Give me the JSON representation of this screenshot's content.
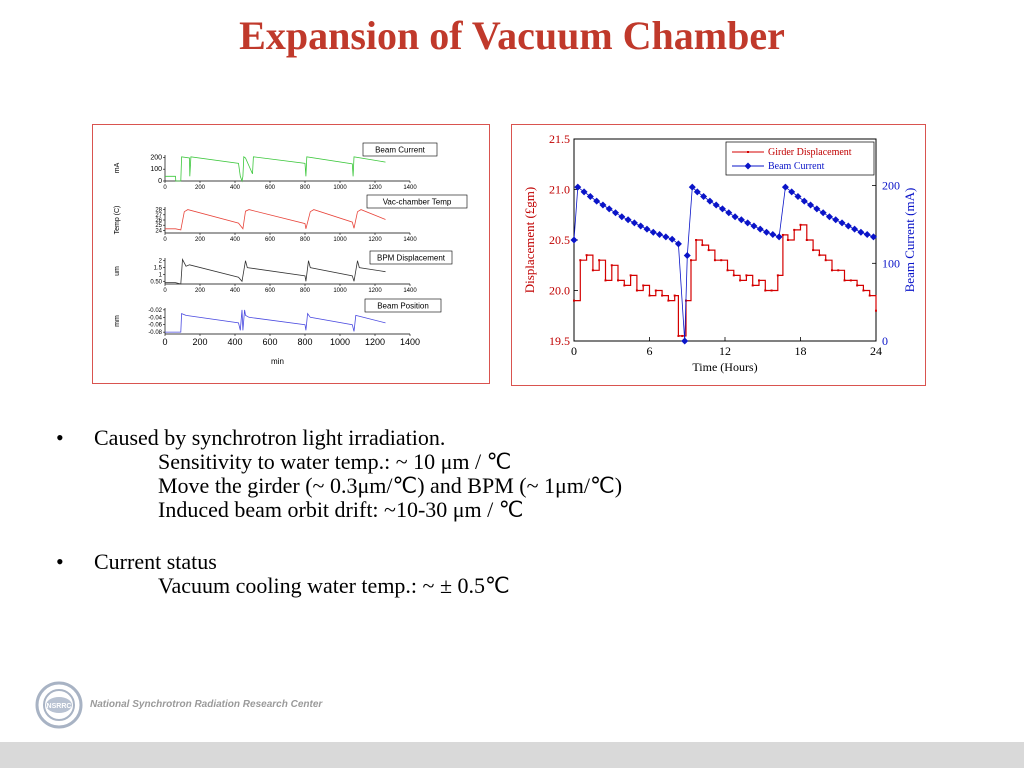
{
  "title": "Expansion of Vacuum Chamber",
  "bullets": [
    {
      "text": "Caused by synchrotron light irradiation.",
      "sub": [
        "Sensitivity to water temp.: ~ 10 μm / ℃",
        "Move the girder (~ 0.3μm/℃) and BPM (~ 1μm/℃)",
        "Induced beam orbit drift: ~10-30 μm / ℃"
      ]
    },
    {
      "text": "Current status",
      "sub": [
        "Vacuum cooling water temp.: ~ ± 0.5℃"
      ]
    }
  ],
  "bullet_symbol": "•",
  "footer": {
    "org": "National Synchrotron Radiation Research Center",
    "logo_text": "NSRRC"
  },
  "colors": {
    "title": "#c0392b",
    "panel_border": "#d9534f",
    "beam_current": "#3cc73c",
    "vac_temp": "#e8443a",
    "bpm_disp": "#333333",
    "beam_position": "#4a4ae0",
    "girder": "#d40000",
    "beam_current_right": "#0a14c8"
  },
  "chart_data": [
    {
      "type": "line",
      "title": "Beam Current",
      "ylabel": "mA",
      "xlim": [
        0,
        1400
      ],
      "xticks": [
        0,
        200,
        400,
        600,
        800,
        1000,
        1200,
        1400
      ],
      "yticks": [
        0,
        100,
        200
      ],
      "ylim": [
        0,
        220
      ],
      "series": [
        {
          "name": "Beam Current",
          "color": "#3cc73c",
          "x": [
            0,
            60,
            62,
            90,
            95,
            140,
            142,
            148,
            420,
            430,
            440,
            445,
            450,
            460,
            500,
            505,
            800,
            805,
            810,
            1070,
            1075,
            1080,
            1260
          ],
          "y": [
            40,
            40,
            0,
            0,
            205,
            195,
            40,
            205,
            150,
            40,
            0,
            40,
            205,
            195,
            60,
            205,
            150,
            40,
            205,
            145,
            40,
            205,
            160
          ]
        }
      ]
    },
    {
      "type": "line",
      "title": "Vac-chamber Temp",
      "ylabel": "Temp (C)",
      "xlim": [
        0,
        1400
      ],
      "xticks": [
        0,
        200,
        400,
        600,
        800,
        1000,
        1200,
        1400
      ],
      "yticks": [
        24,
        25,
        26,
        27,
        28
      ],
      "ylim": [
        23.5,
        28.5
      ],
      "series": [
        {
          "name": "Vac-chamber Temp",
          "color": "#e8443a",
          "x": [
            0,
            60,
            90,
            110,
            130,
            420,
            445,
            460,
            480,
            800,
            805,
            830,
            850,
            1070,
            1080,
            1100,
            1120,
            1260
          ],
          "y": [
            24.3,
            24.3,
            24.1,
            27.6,
            28.0,
            25.4,
            24.3,
            27.7,
            28.0,
            25.3,
            24.3,
            27.6,
            28.0,
            25.6,
            24.4,
            27.6,
            28.0,
            26.1
          ]
        }
      ]
    },
    {
      "type": "line",
      "title": "BPM Displacement",
      "ylabel": "um",
      "xlim": [
        0,
        1400
      ],
      "xticks": [
        0,
        200,
        400,
        600,
        800,
        1000,
        1200,
        1400
      ],
      "yticks": [
        0.5,
        1.0,
        1.5,
        2.0
      ],
      "ylim": [
        0.3,
        2.2
      ],
      "series": [
        {
          "name": "BPM Displacement",
          "color": "#333333",
          "x": [
            0,
            60,
            90,
            100,
            120,
            140,
            420,
            440,
            460,
            470,
            800,
            805,
            820,
            830,
            1070,
            1080,
            1100,
            1110,
            1260
          ],
          "y": [
            0.4,
            0.4,
            0.3,
            2.1,
            1.6,
            1.7,
            0.8,
            0.5,
            2.0,
            1.5,
            0.9,
            0.5,
            2.0,
            1.5,
            0.9,
            0.5,
            2.0,
            1.5,
            1.2
          ]
        }
      ]
    },
    {
      "type": "line",
      "title": "Beam Position",
      "ylabel": "mm",
      "xlabel": "min",
      "xlim": [
        0,
        1400
      ],
      "xticks": [
        0,
        200,
        400,
        600,
        800,
        1000,
        1200,
        1400
      ],
      "yticks": [
        -0.08,
        -0.06,
        -0.04,
        -0.02
      ],
      "ylim": [
        -0.085,
        -0.015
      ],
      "series": [
        {
          "name": "Beam Position",
          "color": "#4a4ae0",
          "x": [
            0,
            60,
            80,
            90,
            95,
            120,
            420,
            430,
            440,
            445,
            455,
            460,
            480,
            800,
            805,
            815,
            830,
            1070,
            1080,
            1090,
            1260
          ],
          "y": [
            -0.08,
            -0.08,
            -0.08,
            -0.08,
            -0.03,
            -0.035,
            -0.055,
            -0.075,
            -0.02,
            -0.075,
            -0.02,
            -0.035,
            -0.04,
            -0.06,
            -0.075,
            -0.03,
            -0.04,
            -0.06,
            -0.078,
            -0.035,
            -0.055
          ]
        }
      ]
    },
    {
      "type": "line",
      "xlabel": "Time (Hours)",
      "ylabel": "Displacement (£gm)",
      "ylabel_right": "Beam Current (mA)",
      "xlim": [
        0,
        24
      ],
      "xticks": [
        0,
        6,
        12,
        18,
        24
      ],
      "ylim": [
        19.5,
        21.5
      ],
      "yticks": [
        19.5,
        20.0,
        20.5,
        21.0,
        21.5
      ],
      "ylim_right": [
        0,
        260
      ],
      "yticks_right": [
        0,
        100,
        200
      ],
      "legend": "top-right",
      "series": [
        {
          "name": "Girder Displacement",
          "axis": "left",
          "color": "#d40000",
          "x": [
            0.0,
            0.5,
            1.0,
            1.5,
            2.0,
            2.5,
            3.0,
            3.5,
            4.0,
            4.5,
            5.0,
            5.5,
            6.0,
            6.5,
            7.0,
            7.5,
            8.0,
            8.3,
            8.6,
            8.9,
            9.3,
            9.7,
            10.2,
            10.7,
            11.2,
            11.7,
            12.2,
            12.7,
            13.2,
            13.7,
            14.2,
            14.7,
            15.2,
            15.7,
            16.2,
            16.6,
            17.0,
            17.5,
            18.0,
            18.5,
            19.0,
            19.5,
            20.0,
            20.5,
            21.0,
            21.5,
            22.0,
            22.5,
            23.0,
            23.5,
            24.0
          ],
          "y": [
            19.9,
            20.3,
            20.35,
            20.2,
            20.3,
            20.1,
            20.25,
            20.1,
            20.05,
            20.15,
            20.0,
            20.05,
            19.95,
            20.0,
            19.95,
            19.9,
            19.95,
            19.55,
            19.55,
            19.9,
            20.3,
            20.5,
            20.45,
            20.4,
            20.3,
            20.3,
            20.2,
            20.15,
            20.1,
            20.15,
            20.05,
            20.1,
            20.0,
            20.0,
            20.15,
            20.55,
            20.5,
            20.6,
            20.65,
            20.5,
            20.4,
            20.35,
            20.3,
            20.2,
            20.2,
            20.1,
            20.1,
            20.05,
            20.0,
            19.95,
            19.8
          ]
        },
        {
          "name": "Beam Current",
          "axis": "right",
          "color": "#0a14c8",
          "x": [
            0.0,
            0.3,
            0.8,
            1.3,
            1.8,
            2.3,
            2.8,
            3.3,
            3.8,
            4.3,
            4.8,
            5.3,
            5.8,
            6.3,
            6.8,
            7.3,
            7.8,
            8.3,
            8.8,
            9.0,
            9.4,
            9.8,
            10.3,
            10.8,
            11.3,
            11.8,
            12.3,
            12.8,
            13.3,
            13.8,
            14.3,
            14.8,
            15.3,
            15.8,
            16.3,
            16.8,
            17.3,
            17.8,
            18.3,
            18.8,
            19.3,
            19.8,
            20.3,
            20.8,
            21.3,
            21.8,
            22.3,
            22.8,
            23.3,
            23.8
          ],
          "y": [
            130,
            198,
            192,
            186,
            180,
            175,
            170,
            165,
            160,
            156,
            152,
            148,
            144,
            140,
            137,
            134,
            131,
            125,
            0,
            110,
            198,
            192,
            186,
            180,
            175,
            170,
            165,
            160,
            156,
            152,
            148,
            144,
            140,
            137,
            134,
            198,
            192,
            186,
            180,
            175,
            170,
            165,
            160,
            156,
            152,
            148,
            144,
            140,
            137,
            134
          ]
        }
      ]
    }
  ]
}
